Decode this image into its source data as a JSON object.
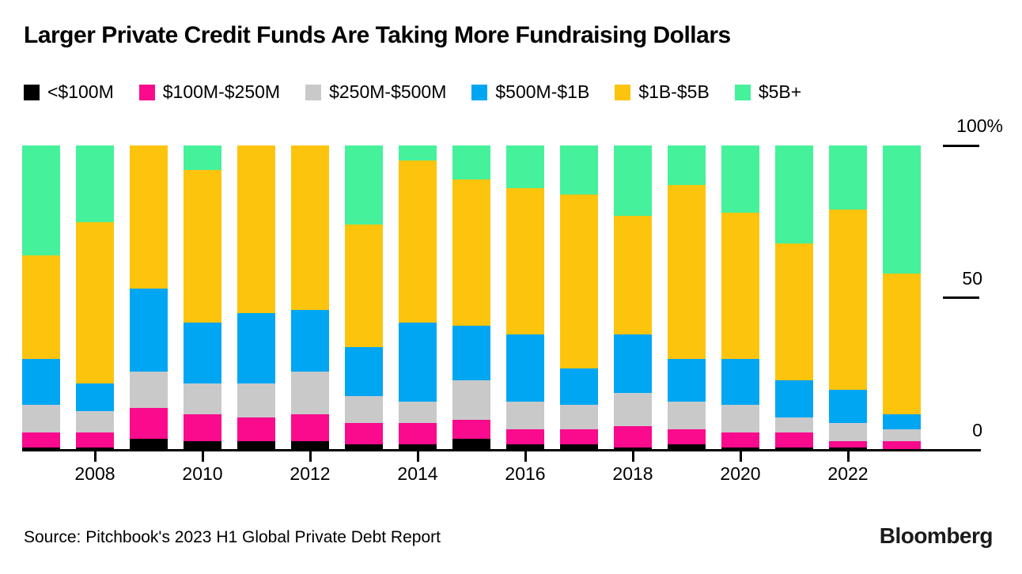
{
  "source": {
    "text": "Source: Pitchbook's 2023 H1 Global Private Debt Report"
  },
  "brand": {
    "wordmark": "Bloomberg"
  },
  "chart_data": {
    "type": "bar",
    "subtype": "stacked-100-percent",
    "title": "Larger Private Credit Funds Are Taking More Fundraising Dollars",
    "unit": "%",
    "legend_position": "top",
    "grid": false,
    "categories": [
      2007,
      2008,
      2009,
      2010,
      2011,
      2012,
      2013,
      2014,
      2015,
      2016,
      2017,
      2018,
      2019,
      2020,
      2021,
      2022,
      2023
    ],
    "series": [
      {
        "name": "<$100M",
        "color": "#000000",
        "values": [
          1,
          1,
          4,
          3,
          3,
          3,
          2,
          2,
          4,
          2,
          2,
          1,
          2,
          1,
          1,
          1,
          0
        ]
      },
      {
        "name": "$100M-$250M",
        "color": "#fa0a8c",
        "values": [
          5,
          5,
          10,
          9,
          8,
          9,
          7,
          7,
          6,
          5,
          5,
          7,
          5,
          5,
          5,
          2,
          3
        ]
      },
      {
        "name": "$250M-$500M",
        "color": "#c9c9c9",
        "values": [
          9,
          7,
          12,
          10,
          11,
          14,
          9,
          7,
          13,
          9,
          8,
          11,
          9,
          9,
          5,
          6,
          4
        ]
      },
      {
        "name": "$500M-$1B",
        "color": "#00a6f2",
        "values": [
          15,
          9,
          27,
          20,
          23,
          20,
          16,
          26,
          18,
          22,
          12,
          19,
          14,
          15,
          12,
          11,
          5
        ]
      },
      {
        "name": "$1B-$5B",
        "color": "#fdc40d",
        "values": [
          34,
          53,
          47,
          50,
          55,
          54,
          40,
          53,
          48,
          48,
          57,
          39,
          57,
          48,
          45,
          59,
          46
        ]
      },
      {
        "name": "$5B+",
        "color": "#45f19b",
        "values": [
          36,
          25,
          0,
          8,
          0,
          0,
          26,
          5,
          11,
          14,
          16,
          23,
          13,
          22,
          32,
          21,
          42
        ]
      }
    ],
    "y_axis": {
      "ticks": [
        "100%",
        "50",
        "0"
      ],
      "min": 0,
      "max": 100
    },
    "x_axis": {
      "tick_labels": [
        "2008",
        "2010",
        "2012",
        "2014",
        "2016",
        "2018",
        "2020",
        "2022"
      ]
    }
  }
}
